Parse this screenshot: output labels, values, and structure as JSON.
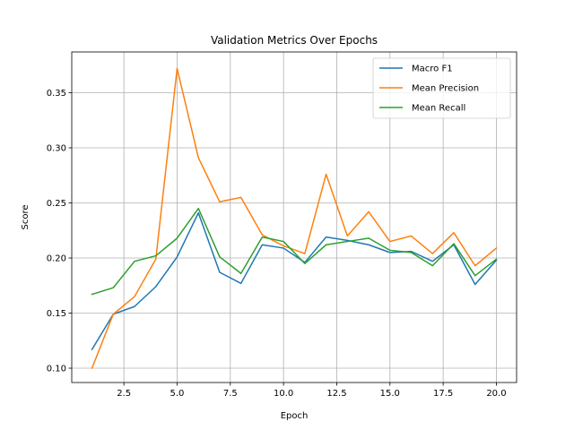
{
  "chart_data": {
    "type": "line",
    "title": "Validation Metrics Over Epochs",
    "xlabel": "Epoch",
    "ylabel": "Score",
    "xlim": [
      0.05,
      20.95
    ],
    "ylim": [
      0.087,
      0.387
    ],
    "xticks": [
      2.5,
      5.0,
      7.5,
      10.0,
      12.5,
      15.0,
      17.5,
      20.0
    ],
    "xtick_labels": [
      "2.5",
      "5.0",
      "7.5",
      "10.0",
      "12.5",
      "15.0",
      "17.5",
      "20.0"
    ],
    "yticks": [
      0.1,
      0.15,
      0.2,
      0.25,
      0.3,
      0.35
    ],
    "ytick_labels": [
      "0.10",
      "0.15",
      "0.20",
      "0.25",
      "0.30",
      "0.35"
    ],
    "grid": true,
    "legend_position": "top-right",
    "x": [
      1,
      2,
      3,
      4,
      5,
      6,
      7,
      8,
      9,
      10,
      11,
      12,
      13,
      14,
      15,
      16,
      17,
      18,
      19,
      20
    ],
    "series": [
      {
        "name": "Macro F1",
        "color": "#1f77b4",
        "values": [
          0.117,
          0.149,
          0.156,
          0.174,
          0.201,
          0.241,
          0.187,
          0.177,
          0.212,
          0.209,
          0.196,
          0.219,
          0.216,
          0.212,
          0.205,
          0.206,
          0.197,
          0.212,
          0.176,
          0.198
        ]
      },
      {
        "name": "Mean Precision",
        "color": "#ff7f0e",
        "values": [
          0.1,
          0.149,
          0.165,
          0.199,
          0.372,
          0.291,
          0.251,
          0.255,
          0.221,
          0.211,
          0.204,
          0.276,
          0.22,
          0.242,
          0.215,
          0.22,
          0.204,
          0.223,
          0.193,
          0.209
        ]
      },
      {
        "name": "Mean Recall",
        "color": "#2ca02c",
        "values": [
          0.167,
          0.173,
          0.197,
          0.202,
          0.218,
          0.245,
          0.201,
          0.186,
          0.219,
          0.215,
          0.195,
          0.212,
          0.215,
          0.218,
          0.207,
          0.205,
          0.193,
          0.213,
          0.184,
          0.199
        ]
      }
    ]
  }
}
